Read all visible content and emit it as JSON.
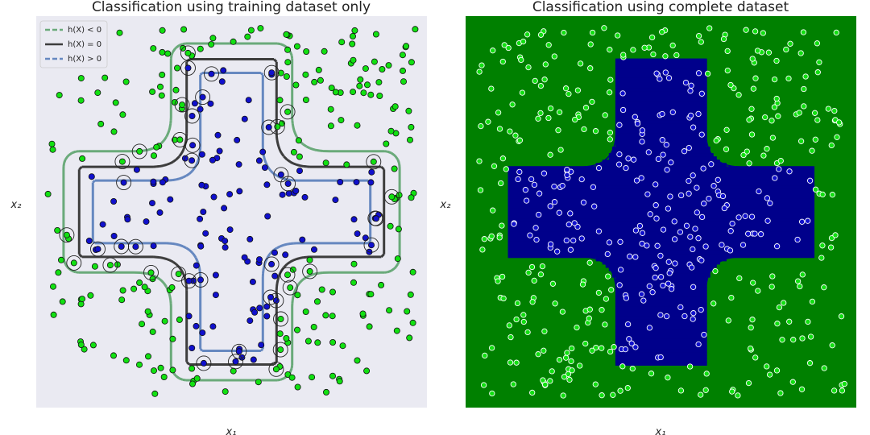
{
  "colors": {
    "panel_bg": "#eaeaf2",
    "class_outside": "#12e012",
    "class_inside": "#1010cc",
    "level_neg": "#6aaa7a",
    "level_zero": "#3d3d3d",
    "level_pos": "#6688c0",
    "region_outside": "#008000",
    "region_inside": "#00008b"
  },
  "chart_data": [
    {
      "type": "scatter",
      "title": "Classification using training dataset only",
      "xlabel": "x₁",
      "ylabel": "x₂",
      "grid": false,
      "legend": {
        "position": "top-left",
        "entries": [
          {
            "label": "h(X) < 0",
            "style": "dashed",
            "color": "#6aaa7a"
          },
          {
            "label": "h(X) = 0",
            "style": "solid",
            "color": "#3d3d3d"
          },
          {
            "label": "h(X) > 0",
            "style": "dashed",
            "color": "#6688c0"
          }
        ]
      },
      "series": [
        {
          "name": "outside class",
          "color": "#12e012",
          "n_points": 210
        },
        {
          "name": "inside class",
          "color": "#1010cc",
          "n_points": 100
        },
        {
          "name": "support vectors",
          "marker": "open circle",
          "n_points": 45
        }
      ],
      "decision_levels": [
        -1,
        0,
        1
      ]
    },
    {
      "type": "heatmap",
      "title": "Classification using complete dataset",
      "xlabel": "x₁",
      "ylabel": "x₂",
      "grid": false,
      "regions": [
        {
          "name": "outside (h(X) < 0)",
          "color": "#008000"
        },
        {
          "name": "inside (h(X) > 0)",
          "color": "#00008b"
        }
      ],
      "series": [
        {
          "name": "outside class",
          "color": "#12e012",
          "n_points": 300
        },
        {
          "name": "inside class",
          "color": "#1010cc",
          "n_points": 200
        }
      ]
    }
  ]
}
